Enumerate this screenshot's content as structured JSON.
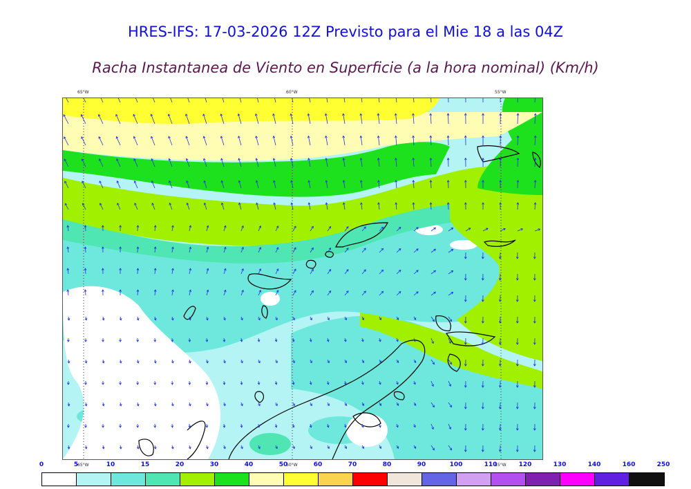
{
  "title": "HRES-IFS: 17-03-2026 12Z Previsto para el Mie 18 a las 04Z",
  "subtitle": "Racha Instantanea de Viento en Superficie (a la hora nominal) (Km/h)",
  "longitude_labels_top": [
    "65°W",
    "60°W",
    "55°W"
  ],
  "longitude_labels_bottom": [
    "65°W",
    "60°W",
    "55°W"
  ],
  "legend": {
    "ticks": [
      "0",
      "5",
      "10",
      "15",
      "20",
      "30",
      "40",
      "50",
      "60",
      "70",
      "80",
      "90",
      "100",
      "110",
      "120",
      "130",
      "140",
      "160",
      "250"
    ],
    "colors": [
      "#ffffff",
      "#b4f4f4",
      "#6ee8dc",
      "#50e6b4",
      "#a0f000",
      "#1ee11e",
      "#fffcb4",
      "#ffff32",
      "#fad350",
      "#ff0000",
      "#f0e6dc",
      "#6464e6",
      "#d2a0f0",
      "#b450f0",
      "#8020b0",
      "#ff00ff",
      "#6020e0",
      "#101010"
    ]
  },
  "colors": {
    "title": "#1010d8",
    "subtitle": "#5a1850",
    "wind_arrows": "#2030e0",
    "coastline": "#000000"
  }
}
